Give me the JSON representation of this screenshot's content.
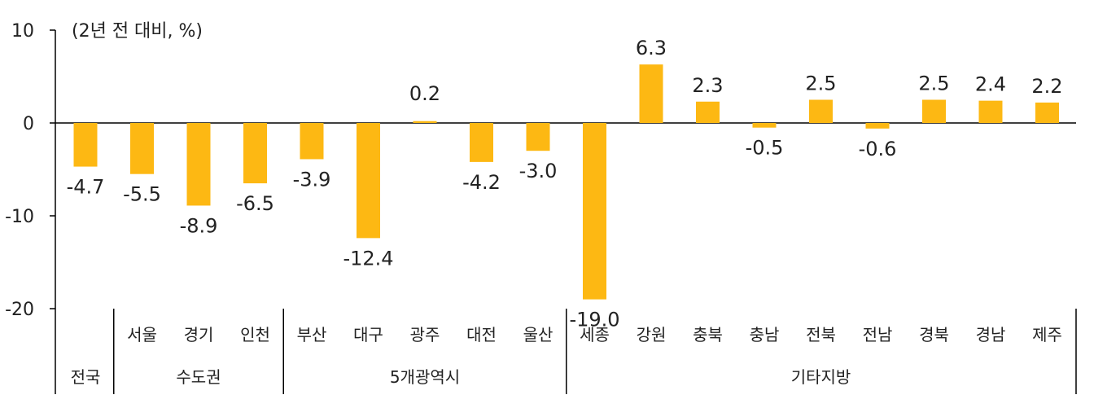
{
  "chart_data": {
    "type": "bar",
    "unit_label": "(2년 전 대비, %)",
    "ylim": [
      -20,
      10
    ],
    "yticks": [
      {
        "value": 10,
        "label": "10"
      },
      {
        "value": 0,
        "label": "0"
      },
      {
        "value": -10,
        "label": "-10"
      },
      {
        "value": -20,
        "label": "-20"
      }
    ],
    "categories": [
      "전국",
      "서울",
      "경기",
      "인천",
      "부산",
      "대구",
      "광주",
      "대전",
      "울산",
      "세종",
      "강원",
      "충북",
      "충남",
      "전북",
      "전남",
      "경북",
      "경남",
      "제주"
    ],
    "values": [
      -4.7,
      -5.5,
      -8.9,
      -6.5,
      -3.9,
      -12.4,
      0.2,
      -4.2,
      -3.0,
      -19.0,
      6.3,
      2.3,
      -0.5,
      2.5,
      -0.6,
      2.5,
      2.4,
      2.2
    ],
    "value_labels": [
      "-4.7",
      "-5.5",
      "-8.9",
      "-6.5",
      "-3.9",
      "-12.4",
      "0.2",
      "-4.2",
      "-3.0",
      "-19.0",
      "6.3",
      "2.3",
      "-0.5",
      "2.5",
      "-0.6",
      "2.5",
      "2.4",
      "2.2"
    ],
    "groups": [
      {
        "label": "전국",
        "start": 0,
        "end": 0
      },
      {
        "label": "수도권",
        "start": 1,
        "end": 3
      },
      {
        "label": "5개광역시",
        "start": 4,
        "end": 8
      },
      {
        "label": "기타지방",
        "start": 9,
        "end": 17
      }
    ],
    "bar_color": "#FDB813",
    "axis_color": "#000000",
    "grid": false,
    "legend": "none"
  }
}
